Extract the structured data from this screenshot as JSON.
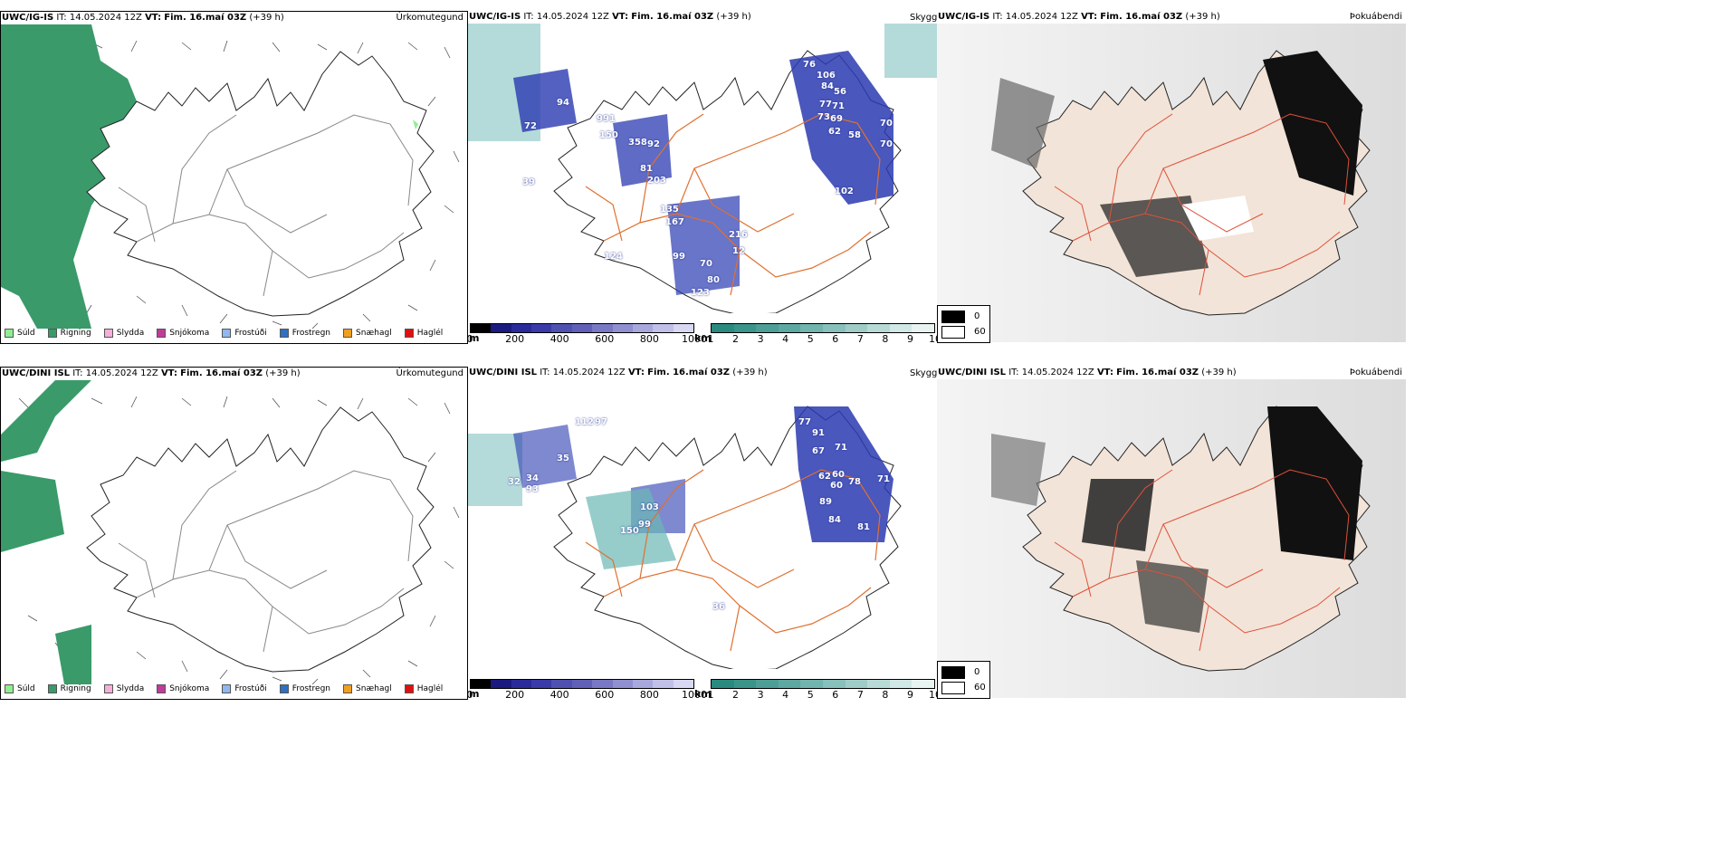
{
  "colors": {
    "precip_rain": "#3a9a6a",
    "precip_drizzle": "#90ee90",
    "cloud_teal": "#6ab8b4",
    "cloud_blue": "#2a3ab0",
    "roads": "#e07030",
    "land": "#f2e4d8"
  },
  "rows": [
    {
      "model": "UWC/IG-IS",
      "precip": {
        "it_label": "IT:",
        "it_value": "14.05.2024 12Z",
        "vt_label": "VT:",
        "vt_value": "Fim. 16.maí 03Z",
        "lead": "(+39 h)",
        "right_title": "Úrkomutegund"
      },
      "cloud": {
        "it_label": "IT:",
        "it_value": "14.05.2024 12Z",
        "vt_label": "VT:",
        "vt_value": "Fim. 16.maí 03Z",
        "lead": "(+39 h)",
        "right_title": "Skyggni"
      },
      "fog": {
        "it_label": "IT:",
        "it_value": "14.05.2024 12Z",
        "vt_label": "VT:",
        "vt_value": "Fim. 16.maí 03Z",
        "lead": "(+39 h)",
        "right_title": "Þokuábendi"
      },
      "cloud_numbers": [
        "76",
        "106",
        "84",
        "56",
        "77",
        "71",
        "73",
        "69",
        "62",
        "58",
        "70",
        "70",
        "102",
        "94",
        "72",
        "991",
        "150",
        "358",
        "92",
        "81",
        "203",
        "39",
        "135",
        "167",
        "216",
        "12",
        "99",
        "70",
        "80",
        "123",
        "124"
      ]
    },
    {
      "model": "UWC/DINI ISL",
      "precip": {
        "it_label": "IT:",
        "it_value": "14.05.2024 12Z",
        "vt_label": "VT:",
        "vt_value": "Fim. 16.maí 03Z",
        "lead": "(+39 h)",
        "right_title": "Úrkomutegund"
      },
      "cloud": {
        "it_label": "IT:",
        "it_value": "14.05.2024 12Z",
        "vt_label": "VT:",
        "vt_value": "Fim. 16.maí 03Z",
        "lead": "(+39 h)",
        "right_title": "Skyggni"
      },
      "fog": {
        "it_label": "IT:",
        "it_value": "14.05.2024 12Z",
        "vt_label": "VT:",
        "vt_value": "Fim. 16.maí 03Z",
        "lead": "(+39 h)",
        "right_title": "Þokuábendi"
      },
      "cloud_numbers": [
        "77",
        "91",
        "67",
        "71",
        "62",
        "60",
        "60",
        "78",
        "71",
        "89",
        "84",
        "81",
        "97",
        "35",
        "32",
        "34",
        "93",
        "103",
        "99",
        "150",
        "36",
        "112"
      ]
    }
  ],
  "precip_legend": [
    {
      "label": "Súld",
      "color": "#90ee90"
    },
    {
      "label": "Rigning",
      "color": "#3a9a6a"
    },
    {
      "label": "Slydda",
      "color": "#f4b0d8"
    },
    {
      "label": "Snjókoma",
      "color": "#c03c9a"
    },
    {
      "label": "Frostúði",
      "color": "#90b8f0"
    },
    {
      "label": "Frostregn",
      "color": "#3070c0"
    },
    {
      "label": "Snæhagl",
      "color": "#f0a020"
    },
    {
      "label": "Haglél",
      "color": "#e01010"
    }
  ],
  "ceiling_bar": {
    "unit": "m",
    "ticks": [
      "0",
      "200",
      "400",
      "600",
      "800",
      "1000"
    ],
    "colors": [
      "#000000",
      "#1a1a80",
      "#2a2a9a",
      "#3a3aa8",
      "#5050b0",
      "#6060b8",
      "#7878c4",
      "#9090d0",
      "#a8a8dc",
      "#c0c0e8",
      "#d8d8f2"
    ]
  },
  "vis_bar": {
    "unit": "km",
    "ticks": [
      "1",
      "2",
      "3",
      "4",
      "5",
      "6",
      "7",
      "8",
      "9",
      "10"
    ],
    "colors": [
      "#2a8a80",
      "#3a948a",
      "#4c9e96",
      "#5ea8a2",
      "#72b4ae",
      "#88c0bc",
      "#a0ccc8",
      "#b8dad6",
      "#d0e8e6",
      "#e8f4f2"
    ]
  },
  "fog_legend": [
    {
      "label": "0",
      "color": "#000000"
    },
    {
      "label": "60",
      "color": "#ffffff"
    }
  ]
}
